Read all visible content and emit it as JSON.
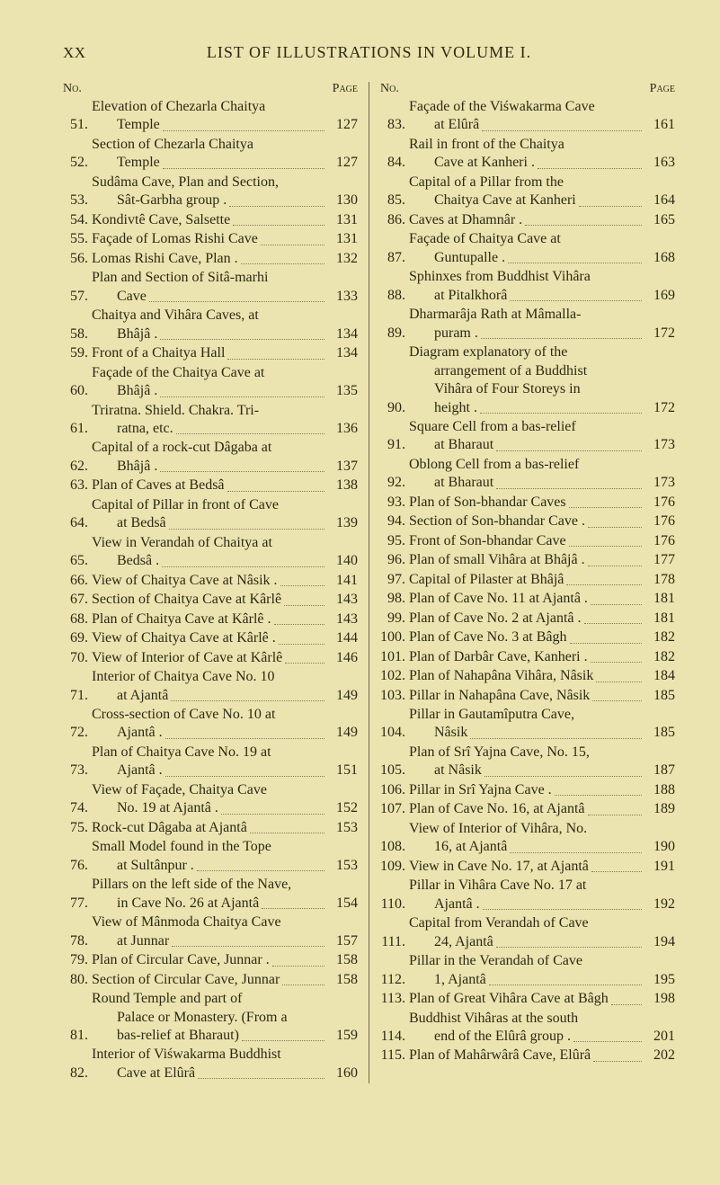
{
  "header": {
    "roman": "XX",
    "title": "LIST OF ILLUSTRATIONS IN VOLUME I."
  },
  "col_labels": {
    "no": "No.",
    "page": "Page"
  },
  "left": [
    {
      "n": "51.",
      "lines": [
        "Elevation of Chezarla Chaitya"
      ],
      "last": "Temple",
      "pg": "127"
    },
    {
      "n": "52.",
      "lines": [
        "Section of Chezarla Chaitya"
      ],
      "last": "Temple",
      "pg": "127"
    },
    {
      "n": "53.",
      "lines": [
        "Sudâma Cave, Plan and Section,"
      ],
      "last": "Sât-Garbha group .",
      "pg": "130"
    },
    {
      "n": "54.",
      "lines": [],
      "last": "Kondivtê Cave, Salsette",
      "pg": "131"
    },
    {
      "n": "55.",
      "lines": [],
      "last": "Façade of Lomas Rishi Cave",
      "pg": "131"
    },
    {
      "n": "56.",
      "lines": [],
      "last": "Lomas Rishi Cave, Plan .",
      "pg": "132"
    },
    {
      "n": "57.",
      "lines": [
        "Plan and Section of Sitâ-marhi"
      ],
      "last": "Cave",
      "pg": "133"
    },
    {
      "n": "58.",
      "lines": [
        "Chaitya and Vihâra Caves, at"
      ],
      "last": "Bhâjâ .",
      "pg": "134"
    },
    {
      "n": "59.",
      "lines": [],
      "last": "Front of a Chaitya Hall",
      "pg": "134"
    },
    {
      "n": "60.",
      "lines": [
        "Façade of the Chaitya Cave at"
      ],
      "last": "Bhâjâ .",
      "pg": "135"
    },
    {
      "n": "61.",
      "lines": [
        "Triratna. Shield. Chakra. Tri-"
      ],
      "last": "ratna, etc.",
      "pg": "136"
    },
    {
      "n": "62.",
      "lines": [
        "Capital of a rock-cut Dâgaba at"
      ],
      "last": "Bhâjâ .",
      "pg": "137"
    },
    {
      "n": "63.",
      "lines": [],
      "last": "Plan of Caves at Bedsâ",
      "pg": "138"
    },
    {
      "n": "64.",
      "lines": [
        "Capital of Pillar in front of Cave"
      ],
      "last": "at Bedsâ",
      "pg": "139"
    },
    {
      "n": "65.",
      "lines": [
        "View in Verandah of Chaitya at"
      ],
      "last": "Bedsâ .",
      "pg": "140"
    },
    {
      "n": "66.",
      "lines": [],
      "last": "View of Chaitya Cave at Nâsik .",
      "pg": "141"
    },
    {
      "n": "67.",
      "lines": [],
      "last": "Section of Chaitya Cave at Kârlê",
      "pg": "143"
    },
    {
      "n": "68.",
      "lines": [],
      "last": "Plan of Chaitya Cave at Kârlê .",
      "pg": "143"
    },
    {
      "n": "69.",
      "lines": [],
      "last": "View of Chaitya Cave at Kârlê .",
      "pg": "144"
    },
    {
      "n": "70.",
      "lines": [],
      "last": "View of Interior of Cave at Kârlê",
      "pg": "146"
    },
    {
      "n": "71.",
      "lines": [
        "Interior of Chaitya Cave No. 10"
      ],
      "last": "at Ajantâ",
      "pg": "149"
    },
    {
      "n": "72.",
      "lines": [
        "Cross-section of Cave No. 10 at"
      ],
      "last": "Ajantâ .",
      "pg": "149"
    },
    {
      "n": "73.",
      "lines": [
        "Plan of Chaitya Cave No. 19 at"
      ],
      "last": "Ajantâ .",
      "pg": "151"
    },
    {
      "n": "74.",
      "lines": [
        "View of Façade, Chaitya Cave"
      ],
      "last": "No. 19 at Ajantâ .",
      "pg": "152"
    },
    {
      "n": "75.",
      "lines": [],
      "last": "Rock-cut Dâgaba at Ajantâ",
      "pg": "153"
    },
    {
      "n": "76.",
      "lines": [
        "Small Model found in the Tope"
      ],
      "last": "at Sultânpur .",
      "pg": "153"
    },
    {
      "n": "77.",
      "lines": [
        "Pillars on the left side of the Nave,"
      ],
      "last": "in Cave No. 26 at Ajantâ",
      "pg": "154"
    },
    {
      "n": "78.",
      "lines": [
        "View of Mânmoda Chaitya Cave"
      ],
      "last": "at Junnar",
      "pg": "157"
    },
    {
      "n": "79.",
      "lines": [],
      "last": "Plan of Circular Cave, Junnar .",
      "pg": "158"
    },
    {
      "n": "80.",
      "lines": [],
      "last": "Section of Circular Cave, Junnar",
      "pg": "158"
    },
    {
      "n": "81.",
      "lines": [
        "Round Temple and part of",
        "Palace or Monastery. (From a"
      ],
      "last": "bas-relief at Bharaut)",
      "pg": "159"
    },
    {
      "n": "82.",
      "lines": [
        "Interior of Viśwakarma Buddhist"
      ],
      "last": "Cave at Elûrâ",
      "pg": "160"
    }
  ],
  "right": [
    {
      "n": "83.",
      "lines": [
        "Façade of the Viśwakarma Cave"
      ],
      "last": "at Elûrâ",
      "pg": "161"
    },
    {
      "n": "84.",
      "lines": [
        "Rail in front of the Chaitya"
      ],
      "last": "Cave at Kanheri .",
      "pg": "163"
    },
    {
      "n": "85.",
      "lines": [
        "Capital of a Pillar from the"
      ],
      "last": "Chaitya Cave at Kanheri",
      "pg": "164"
    },
    {
      "n": "86.",
      "lines": [],
      "last": "Caves at Dhamnâr .",
      "pg": "165"
    },
    {
      "n": "87.",
      "lines": [
        "Façade of Chaitya Cave at"
      ],
      "last": "Guntupalle .",
      "pg": "168"
    },
    {
      "n": "88.",
      "lines": [
        "Sphinxes from Buddhist Vihâra"
      ],
      "last": "at Pitalkhorâ",
      "pg": "169"
    },
    {
      "n": "89.",
      "lines": [
        "Dharmarâja Rath at Mâmalla-"
      ],
      "last": "puram .",
      "pg": "172"
    },
    {
      "n": "90.",
      "lines": [
        "Diagram explanatory of the",
        "arrangement of a Buddhist",
        "Vihâra of Four Storeys in"
      ],
      "last": "height .",
      "pg": "172"
    },
    {
      "n": "91.",
      "lines": [
        "Square Cell from a bas-relief"
      ],
      "last": "at Bharaut",
      "pg": "173"
    },
    {
      "n": "92.",
      "lines": [
        "Oblong Cell from a bas-relief"
      ],
      "last": "at Bharaut",
      "pg": "173"
    },
    {
      "n": "93.",
      "lines": [],
      "last": "Plan of Son-bhandar Caves",
      "pg": "176"
    },
    {
      "n": "94.",
      "lines": [],
      "last": "Section of Son-bhandar Cave .",
      "pg": "176"
    },
    {
      "n": "95.",
      "lines": [],
      "last": "Front of Son-bhandar Cave",
      "pg": "176"
    },
    {
      "n": "96.",
      "lines": [],
      "last": "Plan of small Vihâra at Bhâjâ .",
      "pg": "177"
    },
    {
      "n": "97.",
      "lines": [],
      "last": "Capital of Pilaster at Bhâjâ",
      "pg": "178"
    },
    {
      "n": "98.",
      "lines": [],
      "last": "Plan of Cave No. 11 at Ajantâ .",
      "pg": "181"
    },
    {
      "n": "99.",
      "lines": [],
      "last": "Plan of Cave No. 2 at Ajantâ .",
      "pg": "181"
    },
    {
      "n": "100.",
      "lines": [],
      "last": "Plan of Cave No. 3 at Bâgh",
      "pg": "182"
    },
    {
      "n": "101.",
      "lines": [],
      "last": "Plan of Darbâr Cave, Kanheri .",
      "pg": "182"
    },
    {
      "n": "102.",
      "lines": [],
      "last": "Plan of Nahapâna Vihâra, Nâsik",
      "pg": "184"
    },
    {
      "n": "103.",
      "lines": [],
      "last": "Pillar in Nahapâna Cave, Nâsik",
      "pg": "185"
    },
    {
      "n": "104.",
      "lines": [
        "Pillar in Gautamîputra Cave,"
      ],
      "last": "Nâsik",
      "pg": "185"
    },
    {
      "n": "105.",
      "lines": [
        "Plan of Srî Yajna Cave, No. 15,"
      ],
      "last": "at Nâsik",
      "pg": "187"
    },
    {
      "n": "106.",
      "lines": [],
      "last": "Pillar in Srî Yajna Cave .",
      "pg": "188"
    },
    {
      "n": "107.",
      "lines": [],
      "last": "Plan of Cave No. 16, at Ajantâ",
      "pg": "189"
    },
    {
      "n": "108.",
      "lines": [
        "View of Interior of Vihâra, No."
      ],
      "last": "16, at Ajantâ",
      "pg": "190"
    },
    {
      "n": "109.",
      "lines": [],
      "last": "View in Cave No. 17, at Ajantâ",
      "pg": "191"
    },
    {
      "n": "110.",
      "lines": [
        "Pillar in Vihâra Cave No. 17 at"
      ],
      "last": "Ajantâ .",
      "pg": "192"
    },
    {
      "n": "111.",
      "lines": [
        "Capital from Verandah of Cave"
      ],
      "last": "24, Ajantâ",
      "pg": "194"
    },
    {
      "n": "112.",
      "lines": [
        "Pillar in the Verandah of Cave"
      ],
      "last": "1, Ajantâ",
      "pg": "195"
    },
    {
      "n": "113.",
      "lines": [],
      "last": "Plan of Great Vihâra Cave at Bâgh",
      "pg": "198"
    },
    {
      "n": "114.",
      "lines": [
        "Buddhist Vihâras at the south"
      ],
      "last": "end of the Elûrâ group .",
      "pg": "201"
    },
    {
      "n": "115.",
      "lines": [],
      "last": "Plan of Mahârwârâ Cave, Elûrâ",
      "pg": "202"
    }
  ]
}
